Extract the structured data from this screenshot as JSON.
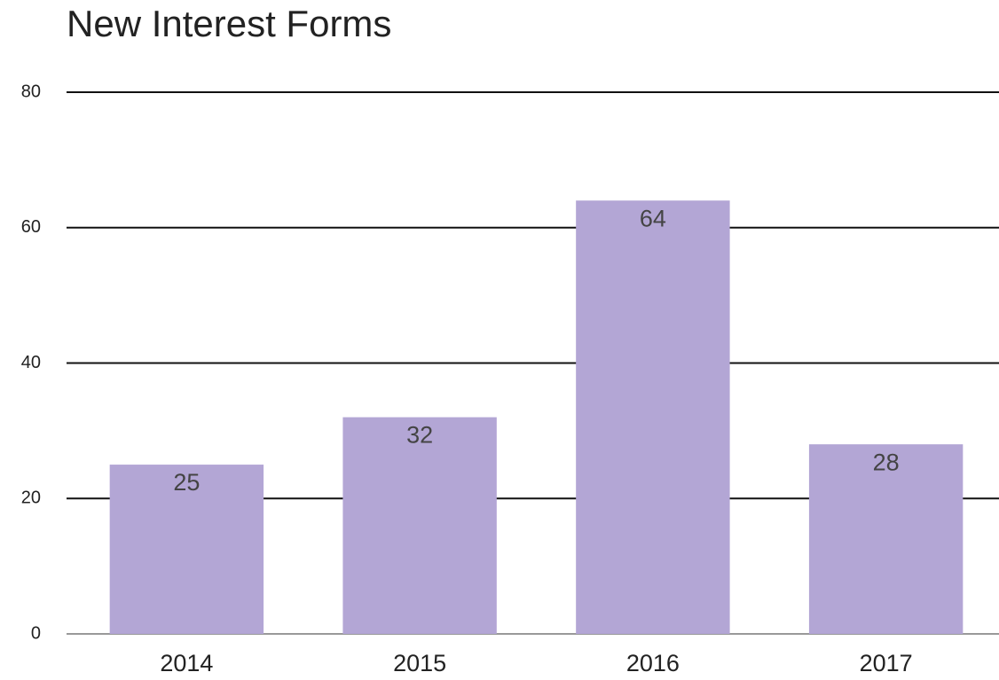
{
  "chart_data": {
    "type": "bar",
    "title": "New Interest Forms",
    "categories": [
      "2014",
      "2015",
      "2016",
      "2017"
    ],
    "values": [
      25,
      32,
      64,
      28
    ],
    "color": "#b3a6d5",
    "ylim": [
      0,
      80
    ],
    "yticks": [
      0,
      20,
      40,
      60,
      80
    ],
    "grid": true
  }
}
